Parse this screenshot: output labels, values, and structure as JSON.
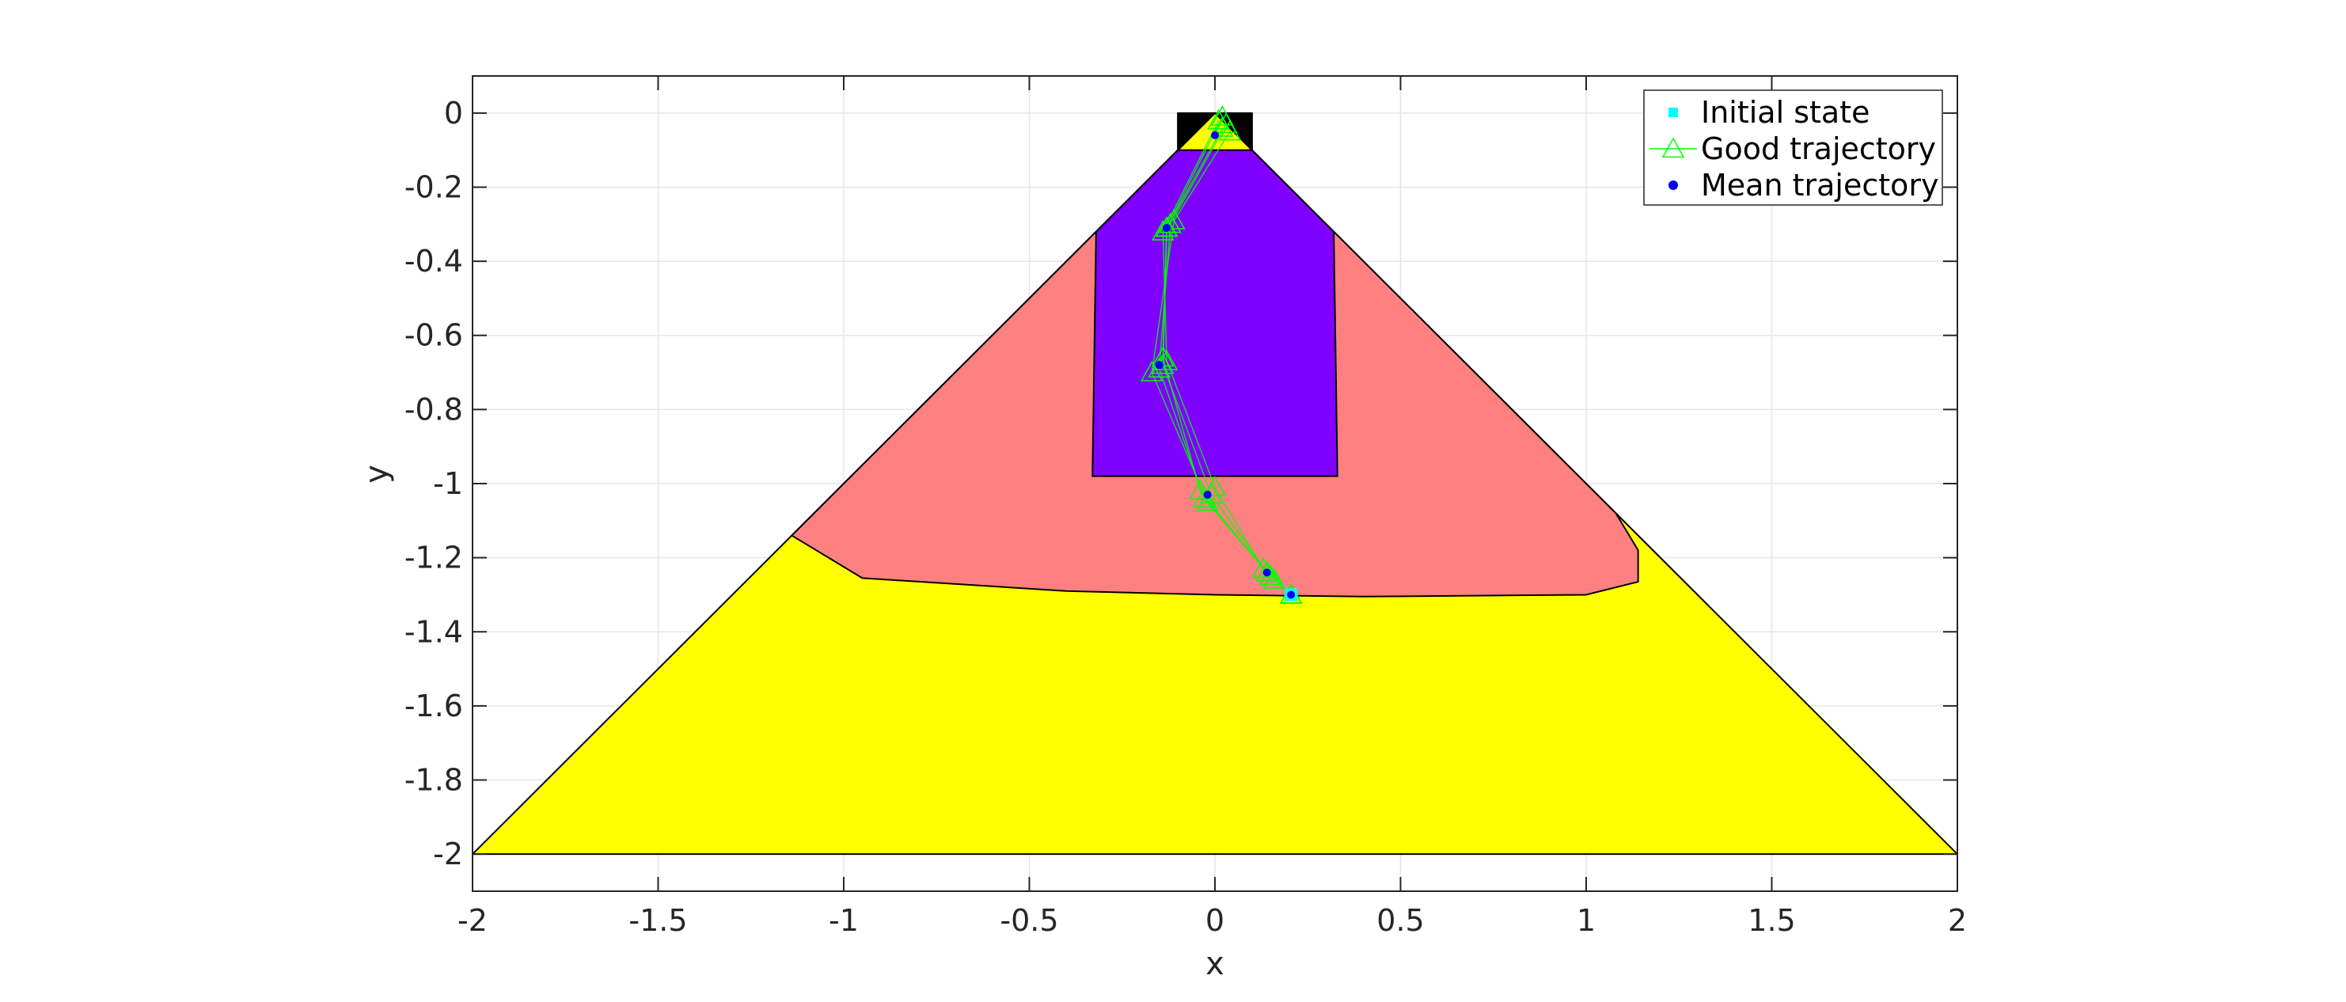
{
  "chart_data": {
    "type": "line",
    "title": "",
    "xlabel": "x",
    "ylabel": "y",
    "xlim": [
      -2,
      2
    ],
    "ylim": [
      -2.1,
      0.1
    ],
    "grid": true,
    "x_ticks": [
      -2,
      -1.5,
      -1,
      -0.5,
      0,
      0.5,
      1,
      1.5,
      2
    ],
    "y_ticks": [
      0,
      -0.2,
      -0.4,
      -0.6,
      -0.8,
      -1,
      -1.2,
      -1.4,
      -1.6,
      -1.8,
      -2
    ],
    "x_tick_labels": [
      "-2",
      "-1.5",
      "-1",
      "-0.5",
      "0",
      "0.5",
      "1",
      "1.5",
      "2"
    ],
    "y_tick_labels": [
      "0",
      "-0.2",
      "-0.4",
      "-0.6",
      "-0.8",
      "-1",
      "-1.2",
      "-1.4",
      "-1.6",
      "-1.8",
      "-2"
    ],
    "regions": [
      {
        "name": "outer-triangle",
        "color": "#ffff00",
        "points": [
          [
            -2,
            -2
          ],
          [
            0,
            0
          ],
          [
            2,
            -2
          ]
        ]
      },
      {
        "name": "reachable-set",
        "color": "#ff8080",
        "points": [
          [
            -0.32,
            -0.32
          ],
          [
            -1.14,
            -1.14
          ],
          [
            -0.95,
            -1.255
          ],
          [
            -0.4,
            -1.29
          ],
          [
            0,
            -1.3
          ],
          [
            0.4,
            -1.305
          ],
          [
            1.0,
            -1.3
          ],
          [
            1.14,
            -1.265
          ],
          [
            1.14,
            -1.18
          ],
          [
            1.08,
            -1.08
          ],
          [
            0.32,
            -0.32
          ]
        ]
      },
      {
        "name": "inner-set",
        "color": "#8000ff",
        "points": [
          [
            -0.1,
            -0.1
          ],
          [
            0.1,
            -0.1
          ],
          [
            0.32,
            -0.32
          ],
          [
            0.33,
            -0.98
          ],
          [
            -0.33,
            -0.98
          ],
          [
            -0.32,
            -0.32
          ]
        ]
      },
      {
        "name": "target-set",
        "color": "#000000",
        "points": [
          [
            -0.1,
            0
          ],
          [
            0.1,
            0
          ],
          [
            0.1,
            -0.1
          ],
          [
            0,
            0
          ],
          [
            -0.1,
            -0.1
          ]
        ]
      }
    ],
    "series": [
      {
        "name": "Initial state",
        "marker": "square",
        "color": "#00ffff",
        "x": [
          0.205
        ],
        "y": [
          -1.3
        ]
      },
      {
        "name": "Good trajectory",
        "marker": "triangle",
        "color": "#00ff00",
        "trajectories": [
          {
            "x": [
              0.205,
              0.14,
              -0.01,
              -0.14,
              -0.13,
              0.02
            ],
            "y": [
              -1.3,
              -1.24,
              -1.03,
              -0.68,
              -0.31,
              -0.01
            ]
          },
          {
            "x": [
              0.205,
              0.15,
              -0.03,
              -0.15,
              -0.12,
              0.03
            ],
            "y": [
              -1.3,
              -1.25,
              -1.04,
              -0.69,
              -0.3,
              -0.03
            ]
          },
          {
            "x": [
              0.205,
              0.13,
              0.0,
              -0.13,
              -0.14,
              0.01
            ],
            "y": [
              -1.3,
              -1.23,
              -1.01,
              -0.67,
              -0.32,
              -0.02
            ]
          },
          {
            "x": [
              0.205,
              0.16,
              -0.02,
              -0.17,
              -0.11,
              0.04
            ],
            "y": [
              -1.3,
              -1.26,
              -1.05,
              -0.7,
              -0.29,
              -0.05
            ]
          },
          {
            "x": [
              0.205,
              0.14,
              -0.04,
              -0.14,
              -0.13,
              0.02
            ],
            "y": [
              -1.3,
              -1.24,
              -1.02,
              -0.66,
              -0.31,
              -0.04
            ]
          }
        ]
      },
      {
        "name": "Mean trajectory",
        "marker": "dot",
        "color": "#0000ff",
        "x": [
          0.205,
          0.14,
          -0.02,
          -0.15,
          -0.13,
          0.0
        ],
        "y": [
          -1.3,
          -1.24,
          -1.03,
          -0.68,
          -0.31,
          -0.06
        ]
      }
    ],
    "legend": {
      "position": "top-right",
      "entries": [
        "Initial state",
        "Good trajectory",
        "Mean trajectory"
      ]
    }
  }
}
